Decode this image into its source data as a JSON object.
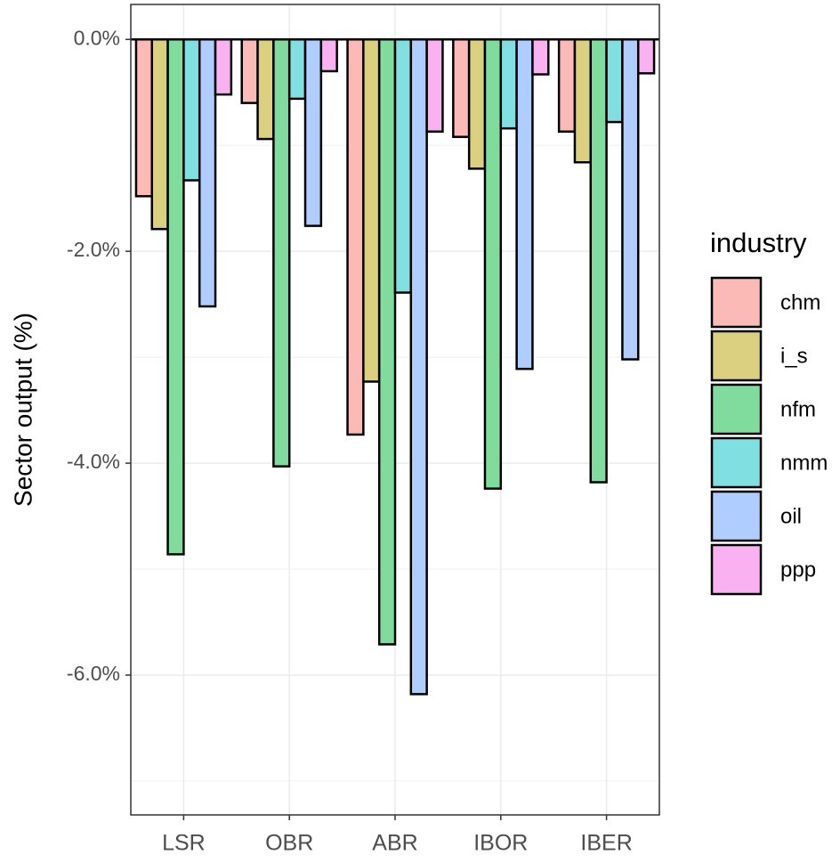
{
  "chart_data": {
    "type": "bar",
    "y_label": "Sector output (%)",
    "categories": [
      "LSR",
      "OBR",
      "ABR",
      "IBOR",
      "IBER"
    ],
    "legend_title": "industry",
    "series": [
      {
        "name": "chm",
        "color": "#fbbab6",
        "values": [
          -1.48,
          -0.6,
          -3.73,
          -0.92,
          -0.87
        ]
      },
      {
        "name": "i_s",
        "color": "#dbcf80",
        "values": [
          -1.79,
          -0.94,
          -3.23,
          -1.22,
          -1.16
        ]
      },
      {
        "name": "nfm",
        "color": "#80dc9c",
        "values": [
          -4.86,
          -4.03,
          -5.71,
          -4.24,
          -4.18
        ]
      },
      {
        "name": "nmm",
        "color": "#80dfe1",
        "values": [
          -1.33,
          -0.56,
          -2.39,
          -0.84,
          -0.78
        ]
      },
      {
        "name": "oil",
        "color": "#b0cdff",
        "values": [
          -2.52,
          -1.76,
          -6.18,
          -3.11,
          -3.02
        ]
      },
      {
        "name": "ppp",
        "color": "#fab1f1",
        "values": [
          -0.52,
          -0.3,
          -0.87,
          -0.33,
          -0.32
        ]
      }
    ],
    "ylim": [
      -7.32,
      0.33
    ],
    "yticks": [
      {
        "value": -6,
        "label": "-6.0%"
      },
      {
        "value": -4,
        "label": "-4.0%"
      },
      {
        "value": -2,
        "label": "-2.0%"
      },
      {
        "value": 0,
        "label": "0.0%"
      }
    ],
    "minor_yticks": [
      -7,
      -5,
      -3,
      -1
    ],
    "hline": 0,
    "grid": true,
    "legend": "right"
  }
}
